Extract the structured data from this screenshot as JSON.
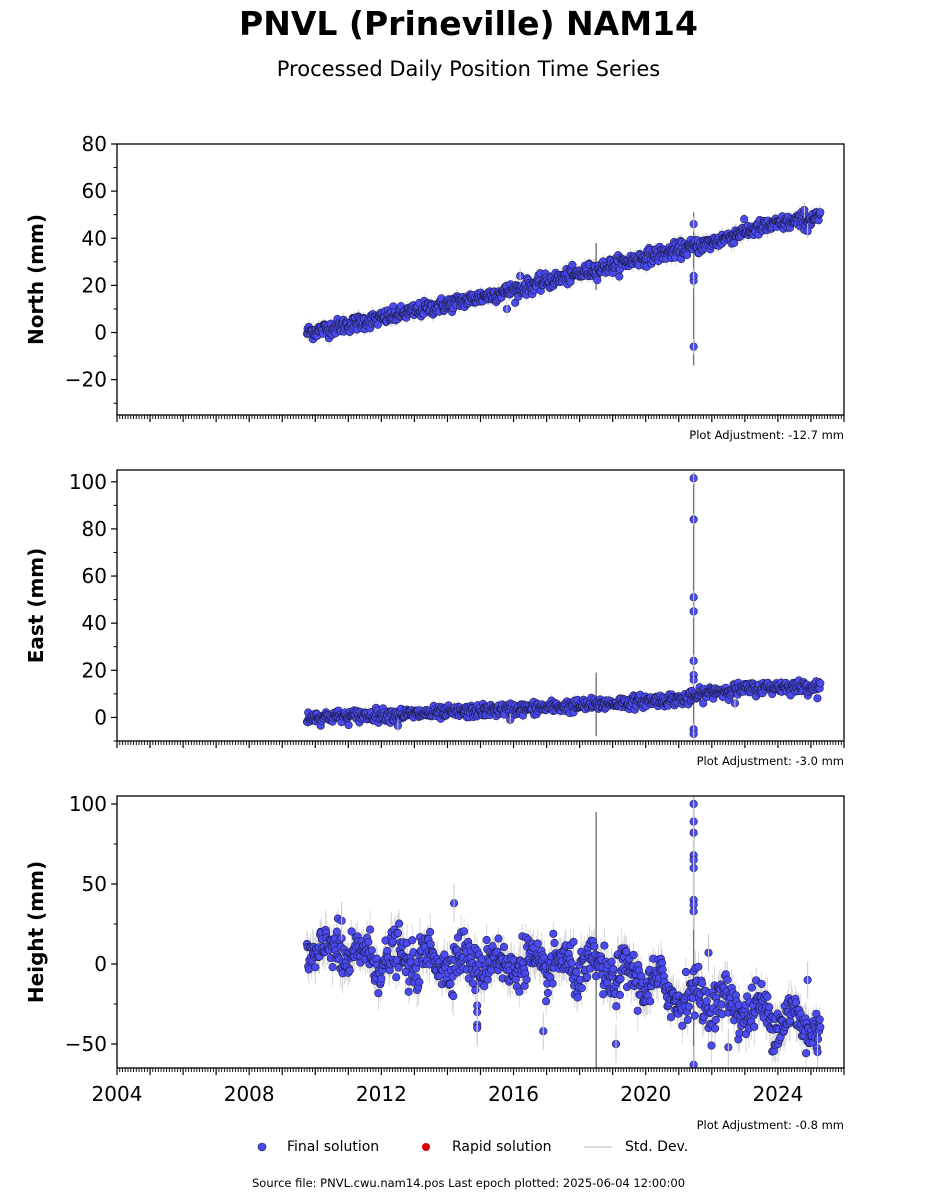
{
  "title": "PNVL (Prineville) NAM14",
  "subtitle": "Processed Daily Position Time Series",
  "colors": {
    "final_solution": "#4a4af0",
    "final_edge": "#1a1a40",
    "rapid_solution": "#e00000",
    "std_dev": "#9a9a9a"
  },
  "legend": {
    "final": "Final solution",
    "rapid": "Rapid solution",
    "std": "Std. Dev."
  },
  "source": "Source file: PNVL.cwu.nam14.pos  Last epoch plotted: 2025-06-04 12:00:00",
  "chart_data": [
    {
      "type": "scatter",
      "component": "north",
      "ylabel": "North (mm)",
      "xlim": [
        2004,
        2026
      ],
      "ylim": [
        -35,
        80
      ],
      "yticks": [
        -20,
        0,
        20,
        40,
        60,
        80
      ],
      "ytick_labels": [
        "−20",
        "0",
        "20",
        "40",
        "60",
        "80"
      ],
      "xticks_labeled": false,
      "adjustment": "Plot Adjustment: -12.7 mm",
      "trend": [
        [
          2009.75,
          0
        ],
        [
          2012,
          6
        ],
        [
          2014,
          12
        ],
        [
          2016,
          18
        ],
        [
          2018,
          25
        ],
        [
          2020,
          32
        ],
        [
          2021.3,
          36
        ],
        [
          2022,
          38
        ],
        [
          2023,
          43
        ],
        [
          2024,
          46
        ],
        [
          2025.3,
          49
        ]
      ],
      "scatter_noise": 1.6,
      "std_dev": 2.5,
      "outliers": [
        [
          2021.45,
          -6
        ],
        [
          2021.45,
          46
        ],
        [
          2021.45,
          22
        ],
        [
          2021.45,
          24
        ],
        [
          2015.8,
          10
        ],
        [
          2016.2,
          24
        ],
        [
          2024.9,
          43
        ],
        [
          2024.8,
          52
        ]
      ],
      "spikes": [
        [
          2018.5,
          18,
          38
        ],
        [
          2021.45,
          -14,
          51
        ]
      ]
    },
    {
      "type": "scatter",
      "component": "east",
      "ylabel": "East (mm)",
      "xlim": [
        2004,
        2026
      ],
      "ylim": [
        -10,
        105
      ],
      "yticks": [
        0,
        20,
        40,
        60,
        80,
        100
      ],
      "ytick_labels": [
        "0",
        "20",
        "40",
        "60",
        "80",
        "100"
      ],
      "xticks_labeled": false,
      "adjustment": "Plot Adjustment: -3.0 mm",
      "trend": [
        [
          2009.75,
          0
        ],
        [
          2012,
          1
        ],
        [
          2014,
          2
        ],
        [
          2016,
          3.5
        ],
        [
          2018,
          5
        ],
        [
          2020,
          7
        ],
        [
          2021.3,
          8
        ],
        [
          2022,
          11
        ],
        [
          2023,
          12
        ],
        [
          2024,
          13
        ],
        [
          2025.3,
          13
        ]
      ],
      "scatter_noise": 1.3,
      "std_dev": 2.0,
      "outliers": [
        [
          2021.45,
          101.5
        ],
        [
          2021.45,
          84
        ],
        [
          2021.45,
          51
        ],
        [
          2021.45,
          45
        ],
        [
          2021.45,
          24
        ],
        [
          2021.45,
          18
        ],
        [
          2021.45,
          16
        ],
        [
          2021.45,
          -5
        ],
        [
          2021.45,
          -7
        ],
        [
          2022.7,
          6
        ],
        [
          2012.5,
          -3.5
        ],
        [
          2015.9,
          -1
        ]
      ],
      "spikes": [
        [
          2018.5,
          -8,
          19
        ],
        [
          2021.45,
          -8,
          104
        ]
      ]
    },
    {
      "type": "scatter",
      "component": "height",
      "ylabel": "Height (mm)",
      "xlim": [
        2004,
        2026
      ],
      "ylim": [
        -65,
        105
      ],
      "yticks": [
        -50,
        0,
        50,
        100
      ],
      "ytick_labels": [
        "−50",
        "0",
        "50",
        "100"
      ],
      "xticks": [
        2004,
        2008,
        2012,
        2016,
        2020,
        2024
      ],
      "xtick_labels": [
        "2004",
        "2008",
        "2012",
        "2016",
        "2020",
        "2024"
      ],
      "adjustment": "Plot Adjustment: -0.8 mm",
      "trend": [
        [
          2009.75,
          10
        ],
        [
          2012,
          3
        ],
        [
          2014,
          2
        ],
        [
          2016,
          0
        ],
        [
          2018,
          -2
        ],
        [
          2020,
          -10
        ],
        [
          2021,
          -20
        ],
        [
          2022,
          -22
        ],
        [
          2023,
          -28
        ],
        [
          2024,
          -33
        ],
        [
          2025.3,
          -40
        ]
      ],
      "scatter_noise": 7,
      "std_dev": 9,
      "seasonal_amplitude": 6,
      "outliers": [
        [
          2021.45,
          100
        ],
        [
          2021.45,
          89
        ],
        [
          2021.45,
          82
        ],
        [
          2021.45,
          68
        ],
        [
          2021.45,
          65
        ],
        [
          2021.45,
          60
        ],
        [
          2021.45,
          40
        ],
        [
          2021.45,
          37
        ],
        [
          2021.45,
          33
        ],
        [
          2021.45,
          -63
        ],
        [
          2014.2,
          38
        ],
        [
          2014.9,
          -26
        ],
        [
          2014.9,
          -30
        ],
        [
          2014.9,
          -38
        ],
        [
          2014.9,
          -40
        ],
        [
          2010.8,
          27
        ],
        [
          2016.9,
          -42
        ],
        [
          2019.1,
          -50
        ],
        [
          2022.5,
          -52
        ],
        [
          2021.9,
          7
        ],
        [
          2024.9,
          -10
        ],
        [
          2025.2,
          -55
        ]
      ],
      "spikes": [
        [
          2018.5,
          -65,
          95
        ],
        [
          2021.45,
          -65,
          105
        ]
      ]
    }
  ]
}
